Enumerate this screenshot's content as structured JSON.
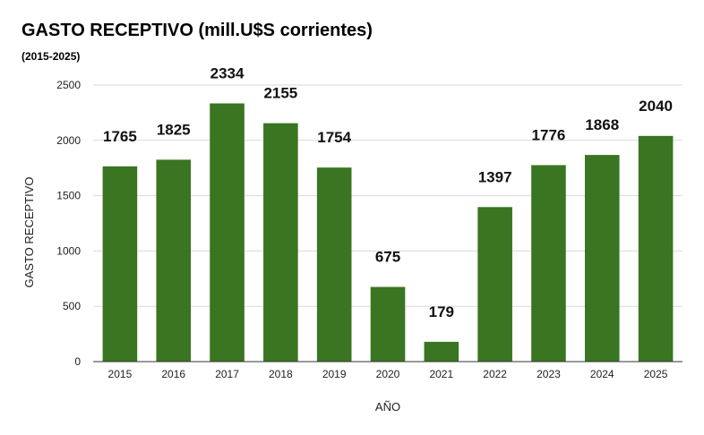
{
  "chart_data": {
    "type": "bar",
    "title": "GASTO RECEPTIVO (mill.U$S corrientes)",
    "subtitle": "(2015-2025)",
    "xlabel": "AÑO",
    "ylabel": "GASTO RECEPTIVO",
    "categories": [
      "2015",
      "2016",
      "2017",
      "2018",
      "2019",
      "2020",
      "2021",
      "2022",
      "2023",
      "2024",
      "2025"
    ],
    "values": [
      1765,
      1825,
      2334,
      2155,
      1754,
      675,
      179,
      1397,
      1776,
      1868,
      2040
    ],
    "ylim": [
      0,
      2500
    ],
    "yticks": [
      0,
      500,
      1000,
      1500,
      2000,
      2500
    ],
    "grid": true,
    "legend": "none",
    "colors": {
      "bar": "#3a7521",
      "grid": "#d9d9d9",
      "axis": "#333333"
    }
  }
}
